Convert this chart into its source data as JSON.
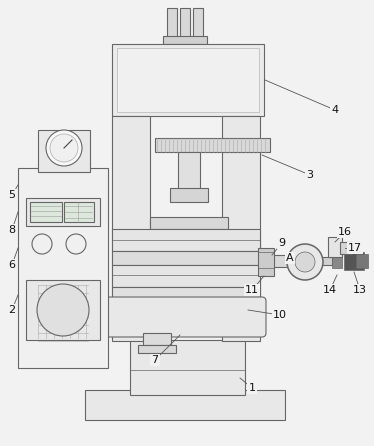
{
  "bg_color": "#f2f2f2",
  "line_color": "#666666",
  "lw": 0.8,
  "fig_w": 3.74,
  "fig_h": 4.46,
  "dpi": 100
}
